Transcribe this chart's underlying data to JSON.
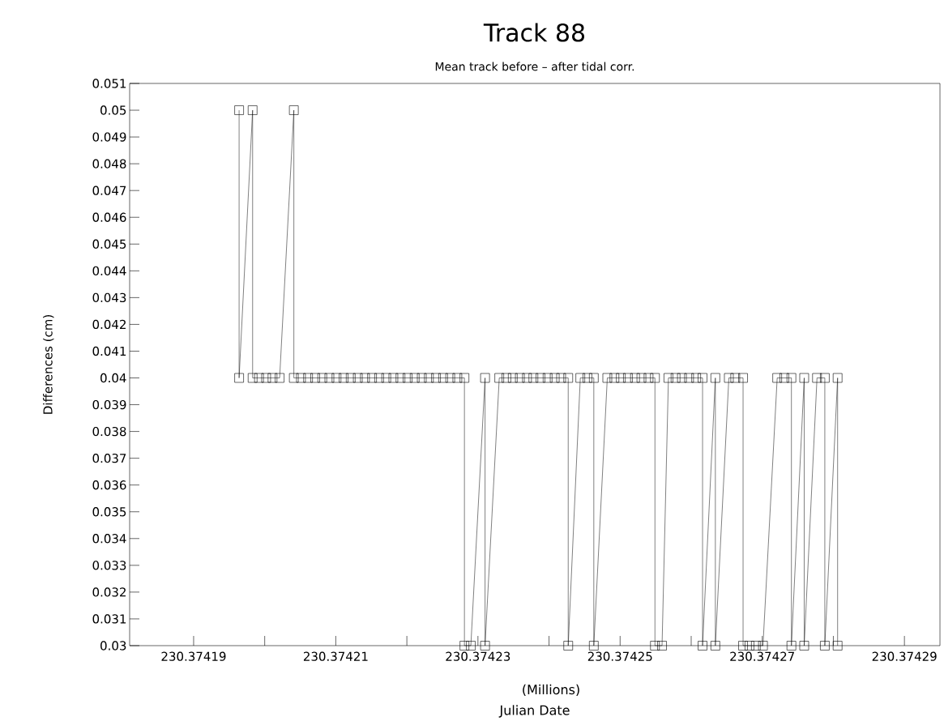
{
  "chart_data": {
    "type": "line",
    "title": "Track 88",
    "subtitle": "Mean track before – after tidal corr.",
    "xlabel": "Julian Date",
    "ylabel": "Differences (cm)",
    "annotations": [
      "(Millions)"
    ],
    "xlim": [
      230.374181,
      230.374295
    ],
    "ylim": [
      0.03,
      0.051
    ],
    "xticks": [
      230.37419,
      {
        "value": 230.3742,
        "label": null
      },
      230.37421,
      {
        "value": 230.37422,
        "label": null
      },
      230.37423,
      {
        "value": 230.37424,
        "label": null
      },
      230.37425,
      {
        "value": 230.37426,
        "label": null
      },
      230.37427,
      {
        "value": 230.37428,
        "label": null
      },
      230.37429
    ],
    "yticks": [
      0.03,
      0.031,
      0.032,
      0.033,
      0.034,
      0.035,
      0.036,
      0.037,
      0.038,
      0.039,
      0.04,
      0.041,
      0.042,
      0.043,
      0.044,
      0.045,
      0.046,
      0.047,
      0.048,
      0.049,
      0.05,
      0.051
    ],
    "marker": "square",
    "line_style": "solid",
    "color": "#000000",
    "x": [
      230.3741964,
      230.3741964,
      230.3741983,
      230.3741983,
      230.3741992,
      230.3742002,
      230.3742011,
      230.3742021,
      230.3742041,
      230.3742041,
      230.3742051,
      230.3742061,
      230.3742071,
      230.3742081,
      230.3742091,
      230.3742101,
      230.3742111,
      230.3742121,
      230.3742131,
      230.3742141,
      230.3742151,
      230.3742161,
      230.3742171,
      230.3742181,
      230.3742191,
      230.3742201,
      230.3742211,
      230.3742221,
      230.3742231,
      230.3742241,
      230.3742251,
      230.3742261,
      230.3742271,
      230.3742281,
      230.3742281,
      230.374229,
      230.374231,
      230.374231,
      230.374233,
      230.374234,
      230.3742349,
      230.3742359,
      230.3742369,
      230.3742378,
      230.3742388,
      230.3742398,
      230.3742408,
      230.3742417,
      230.3742427,
      230.3742427,
      230.3742444,
      230.3742454,
      230.3742463,
      230.3742463,
      230.3742482,
      230.3742492,
      230.3742501,
      230.3742511,
      230.3742521,
      230.374253,
      230.374254,
      230.3742549,
      230.3742549,
      230.3742559,
      230.3742568,
      230.3742578,
      230.3742587,
      230.3742597,
      230.3742607,
      230.3742616,
      230.3742616,
      230.3742634,
      230.3742634,
      230.3742653,
      230.3742662,
      230.3742673,
      230.3742673,
      230.3742682,
      230.3742691,
      230.3742701,
      230.3742721,
      230.3742731,
      230.3742741,
      230.3742741,
      230.3742759,
      230.3742759,
      230.3742777,
      230.3742788,
      230.3742788,
      230.3742806,
      230.3742806
    ],
    "values": [
      0.05,
      0.04,
      0.05,
      0.04,
      0.04,
      0.04,
      0.04,
      0.04,
      0.05,
      0.04,
      0.04,
      0.04,
      0.04,
      0.04,
      0.04,
      0.04,
      0.04,
      0.04,
      0.04,
      0.04,
      0.04,
      0.04,
      0.04,
      0.04,
      0.04,
      0.04,
      0.04,
      0.04,
      0.04,
      0.04,
      0.04,
      0.04,
      0.04,
      0.04,
      0.03,
      0.03,
      0.04,
      0.03,
      0.04,
      0.04,
      0.04,
      0.04,
      0.04,
      0.04,
      0.04,
      0.04,
      0.04,
      0.04,
      0.04,
      0.03,
      0.04,
      0.04,
      0.04,
      0.03,
      0.04,
      0.04,
      0.04,
      0.04,
      0.04,
      0.04,
      0.04,
      0.04,
      0.03,
      0.03,
      0.04,
      0.04,
      0.04,
      0.04,
      0.04,
      0.04,
      0.03,
      0.04,
      0.03,
      0.04,
      0.04,
      0.04,
      0.03,
      0.03,
      0.03,
      0.03,
      0.04,
      0.04,
      0.04,
      0.03,
      0.04,
      0.03,
      0.04,
      0.04,
      0.03,
      0.04,
      0.03
    ]
  }
}
